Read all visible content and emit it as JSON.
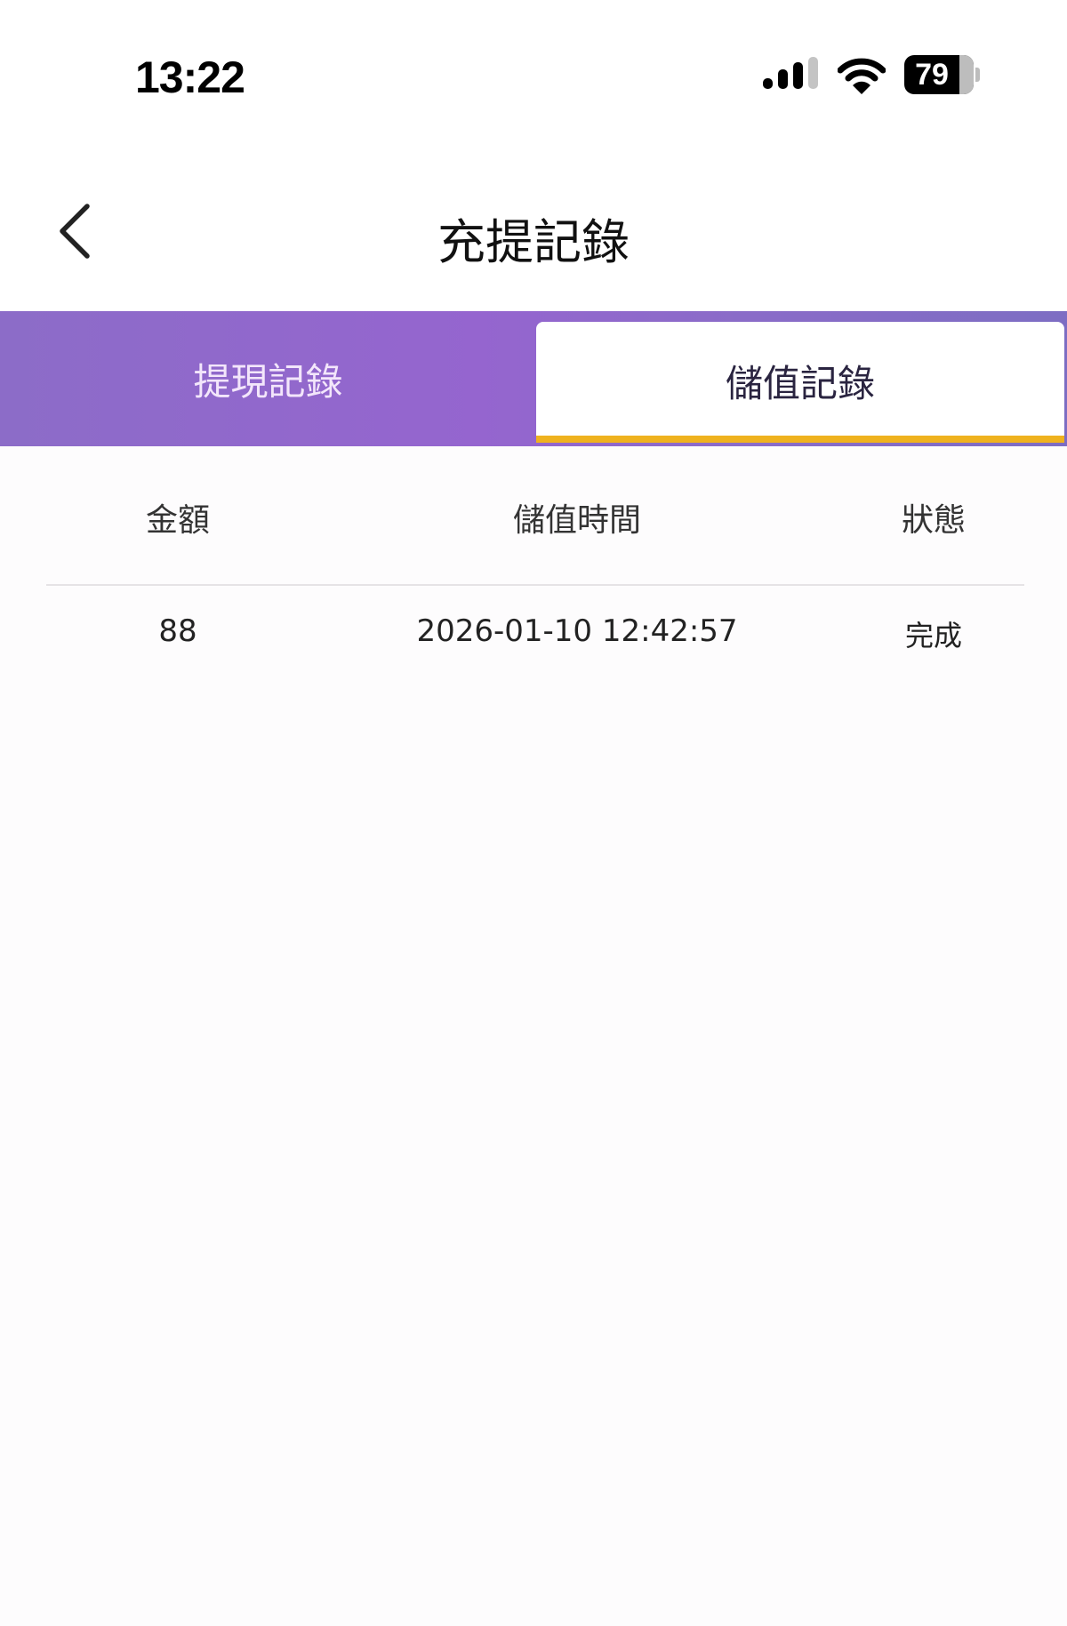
{
  "status_bar": {
    "time": "13:22",
    "battery": "79",
    "battery_level_percent": 79,
    "signal_bars_active": 2,
    "signal_bars_total": 4,
    "icons": [
      "signal-icon",
      "wifi-icon",
      "battery-icon"
    ]
  },
  "header": {
    "title": "充提記錄",
    "back_icon": "chevron-left-icon"
  },
  "tabs": [
    {
      "label": "提現記錄",
      "active": false
    },
    {
      "label": "儲值記錄",
      "active": true
    }
  ],
  "table": {
    "columns": [
      "金額",
      "儲值時間",
      "狀態"
    ],
    "rows": [
      {
        "amount": "88",
        "time": "2026-01-10 12:42:57",
        "status": "完成"
      }
    ]
  },
  "colors": {
    "tab_bar": "#9165cd",
    "active_underline": "#efb21e",
    "active_tab_bg": "#ffffff"
  }
}
